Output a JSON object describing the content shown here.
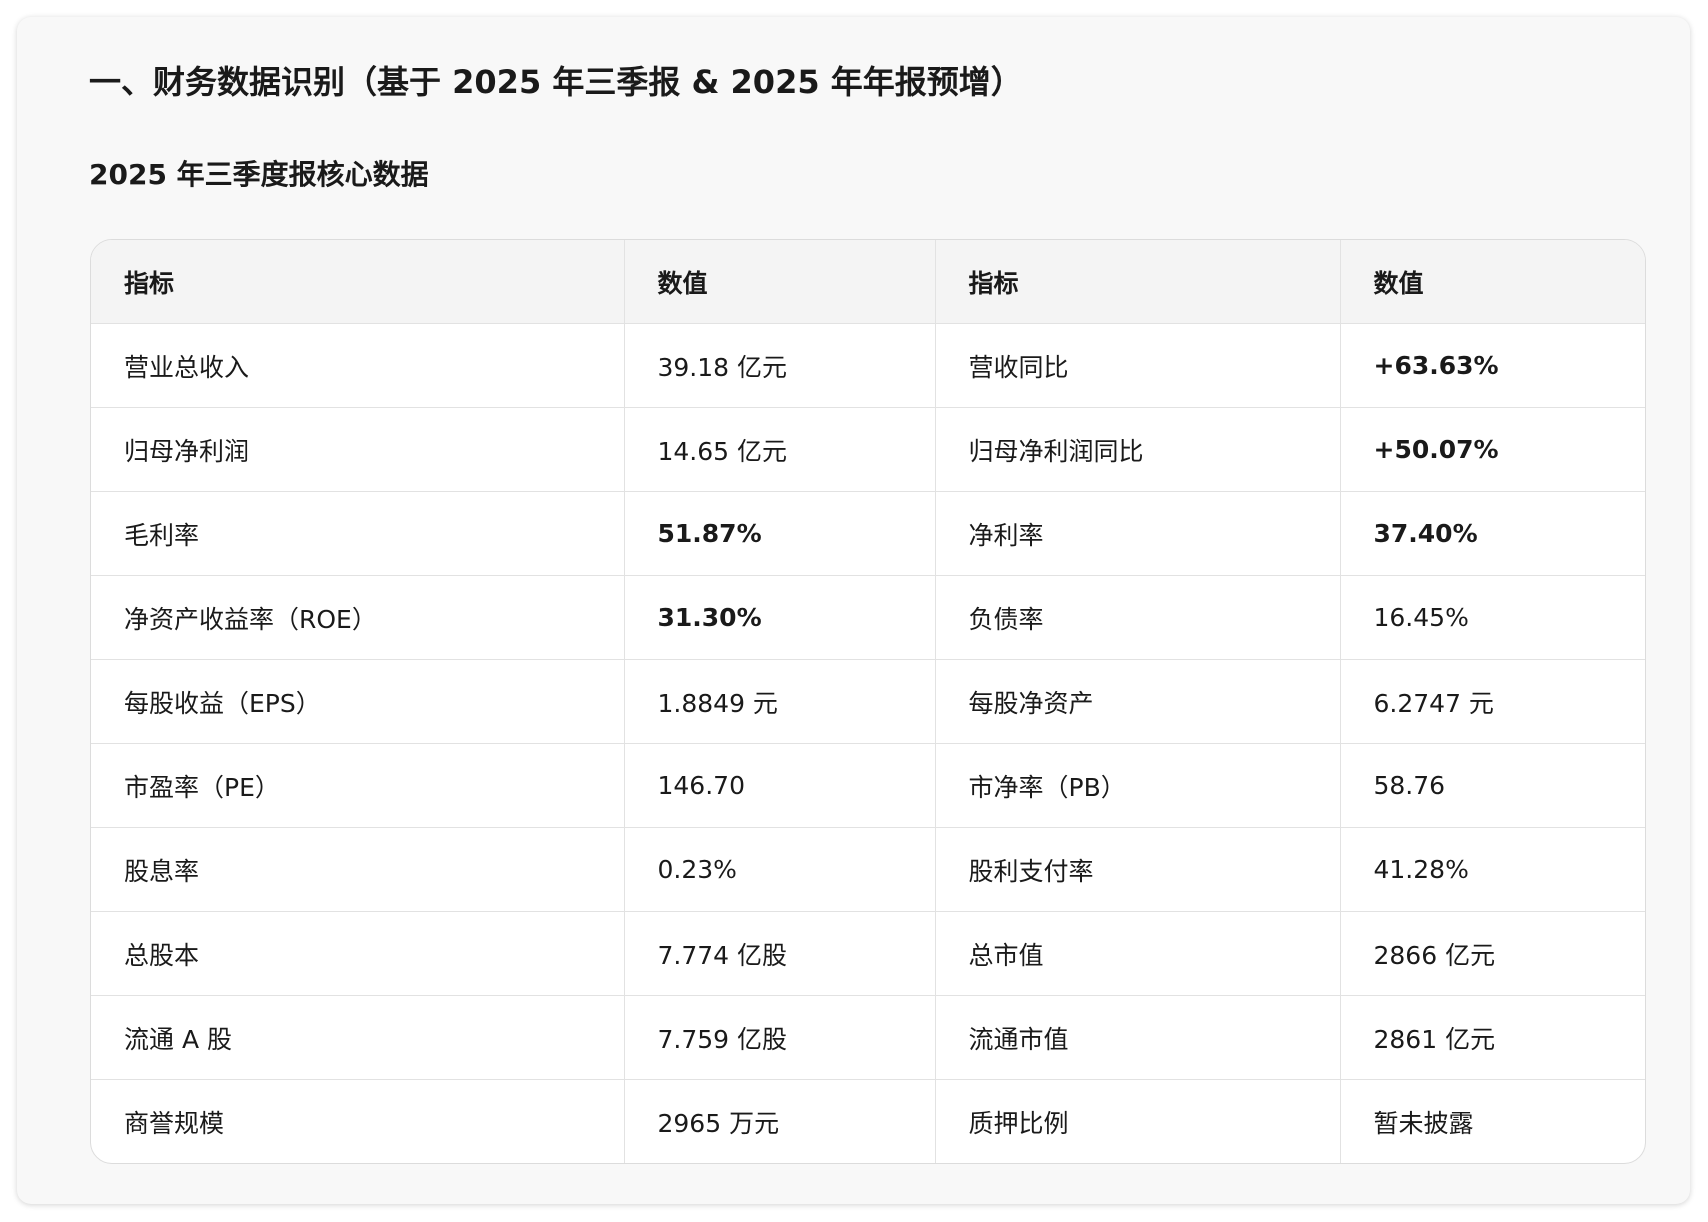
{
  "header": {
    "title": "一、财务数据识别（基于 2025 年三季报 & 2025 年年报预增）",
    "subtitle": "2025 年三季度报核心数据"
  },
  "table": {
    "headers": [
      "指标",
      "数值",
      "指标",
      "数值"
    ],
    "rows": [
      [
        {
          "text": "营业总收入"
        },
        {
          "text": "39.18 亿元"
        },
        {
          "text": "营收同比"
        },
        {
          "text": "+63.63%",
          "bold": true
        }
      ],
      [
        {
          "text": "归母净利润"
        },
        {
          "text": "14.65 亿元"
        },
        {
          "text": "归母净利润同比"
        },
        {
          "text": "+50.07%",
          "bold": true
        }
      ],
      [
        {
          "text": "毛利率"
        },
        {
          "text": "51.87%",
          "bold": true
        },
        {
          "text": "净利率"
        },
        {
          "text": "37.40%",
          "bold": true
        }
      ],
      [
        {
          "text": "净资产收益率（ROE）"
        },
        {
          "text": "31.30%",
          "bold": true
        },
        {
          "text": "负债率"
        },
        {
          "text": "16.45%"
        }
      ],
      [
        {
          "text": "每股收益（EPS）"
        },
        {
          "text": "1.8849 元"
        },
        {
          "text": "每股净资产"
        },
        {
          "text": "6.2747 元"
        }
      ],
      [
        {
          "text": "市盈率（PE）"
        },
        {
          "text": "146.70"
        },
        {
          "text": "市净率（PB）"
        },
        {
          "text": "58.76"
        }
      ],
      [
        {
          "text": "股息率"
        },
        {
          "text": "0.23%"
        },
        {
          "text": "股利支付率"
        },
        {
          "text": "41.28%"
        }
      ],
      [
        {
          "text": "总股本"
        },
        {
          "text": "7.774 亿股"
        },
        {
          "text": "总市值"
        },
        {
          "text": "2866 亿元"
        }
      ],
      [
        {
          "text": "流通 A 股"
        },
        {
          "text": "7.759 亿股"
        },
        {
          "text": "流通市值"
        },
        {
          "text": "2861 亿元"
        }
      ],
      [
        {
          "text": "商誉规模"
        },
        {
          "text": "2965 万元"
        },
        {
          "text": "质押比例"
        },
        {
          "text": "暂未披露"
        }
      ]
    ]
  }
}
